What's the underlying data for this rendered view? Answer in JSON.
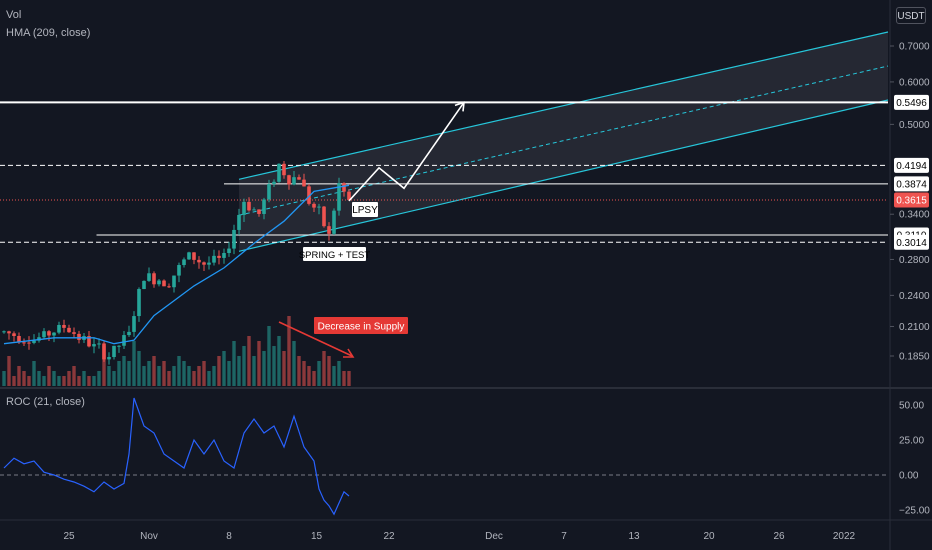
{
  "legend": {
    "volume": "Vol",
    "hma": "HMA (209, close)",
    "roc": "ROC (21, close)"
  },
  "currency": "USDT",
  "colors": {
    "background": "#131722",
    "up": "#26a69a",
    "down": "#ef5350",
    "hma": "#2196f3",
    "roc": "#2962ff",
    "channel": "#26c6da",
    "annotation_red": "#e53935"
  },
  "chart_data": [
    {
      "type": "candlestick",
      "series_name": "price",
      "price_axis_ticks": [
        "0.7000",
        "0.6000",
        "0.5000",
        "0.3400",
        "0.2800",
        "0.2400",
        "0.2100",
        "0.1850"
      ],
      "price_axis_labels": [
        {
          "value": 0.5496,
          "text": "0.5496",
          "style": "white"
        },
        {
          "value": 0.4194,
          "text": "0.4194",
          "style": "white"
        },
        {
          "value": 0.3874,
          "text": "0.3874",
          "style": "white"
        },
        {
          "value": 0.3615,
          "text": "0.3615",
          "style": "last"
        },
        {
          "value": 0.311,
          "text": "0.3110",
          "style": "white"
        },
        {
          "value": 0.3014,
          "text": "0.3014",
          "style": "white"
        }
      ],
      "last_price": 0.3615,
      "date_axis_ticks": [
        "25",
        "Nov",
        "8",
        "15",
        "22",
        "Dec",
        "7",
        "13",
        "20",
        "26",
        "2022"
      ],
      "horizontal_levels": [
        0.5496,
        0.4194,
        0.3874,
        0.311,
        0.3014
      ],
      "annotations": [
        "LPSY",
        "SPRING + TEST",
        "Decrease in Supply"
      ],
      "keypoints": [
        {
          "t": 0,
          "close": 0.205
        },
        {
          "t": 6,
          "close": 0.198
        },
        {
          "t": 12,
          "close": 0.21
        },
        {
          "t": 17,
          "close": 0.195
        },
        {
          "t": 21,
          "close": 0.185
        },
        {
          "t": 25,
          "close": 0.203
        },
        {
          "t": 28,
          "close": 0.26
        },
        {
          "t": 33,
          "close": 0.255
        },
        {
          "t": 37,
          "close": 0.285
        },
        {
          "t": 40,
          "close": 0.275
        },
        {
          "t": 44,
          "close": 0.28
        },
        {
          "t": 48,
          "close": 0.36
        },
        {
          "t": 51,
          "close": 0.34
        },
        {
          "t": 55,
          "close": 0.42
        },
        {
          "t": 57,
          "close": 0.395
        },
        {
          "t": 59,
          "close": 0.4
        },
        {
          "t": 61,
          "close": 0.36
        },
        {
          "t": 63,
          "close": 0.34
        },
        {
          "t": 65,
          "close": 0.31
        },
        {
          "t": 67,
          "close": 0.385
        },
        {
          "t": 69,
          "close": 0.3615
        }
      ],
      "projection_path": [
        {
          "t": 69,
          "price": 0.36
        },
        {
          "t": 75,
          "price": 0.415
        },
        {
          "t": 80,
          "price": 0.38
        },
        {
          "t": 92,
          "price": 0.5496
        }
      ]
    },
    {
      "type": "line",
      "series_name": "HMA (209, close)",
      "x": [
        0,
        10,
        18,
        22,
        26,
        30,
        38,
        44,
        50,
        56,
        62,
        69
      ],
      "y": [
        0.195,
        0.2,
        0.2,
        0.195,
        0.198,
        0.22,
        0.25,
        0.27,
        0.3,
        0.33,
        0.375,
        0.385
      ]
    },
    {
      "type": "bar",
      "series_name": "Vol",
      "values": [
        3,
        6,
        2,
        4,
        3,
        2,
        5,
        3,
        2,
        4,
        3,
        2,
        2,
        3,
        4,
        2,
        3,
        2,
        2,
        3,
        8,
        4,
        3,
        5,
        6,
        5,
        9,
        7,
        4,
        5,
        6,
        4,
        5,
        3,
        4,
        6,
        5,
        4,
        3,
        4,
        5,
        3,
        4,
        6,
        7,
        5,
        9,
        6,
        8,
        10,
        6,
        9,
        7,
        12,
        8,
        10,
        7,
        14,
        9,
        6,
        5,
        4,
        3,
        5,
        7,
        6,
        4,
        5,
        3,
        3
      ]
    },
    {
      "type": "line",
      "series_name": "ROC (21, close)",
      "y_ticks": [
        "50.00",
        "25.00",
        "0.00",
        "-25.00"
      ],
      "ylim": [
        -30,
        60
      ],
      "x": [
        0,
        2,
        4,
        6,
        8,
        10,
        12,
        14,
        16,
        18,
        20,
        22,
        24,
        25,
        26,
        27,
        28,
        30,
        32,
        34,
        36,
        38,
        40,
        42,
        44,
        46,
        48,
        50,
        52,
        54,
        56,
        58,
        60,
        62,
        63,
        64,
        65,
        66,
        67,
        68,
        69
      ],
      "y": [
        5,
        12,
        8,
        10,
        2,
        0,
        -3,
        -5,
        -8,
        -12,
        -5,
        -10,
        -6,
        15,
        55,
        45,
        35,
        30,
        15,
        10,
        5,
        25,
        15,
        25,
        10,
        5,
        30,
        40,
        30,
        35,
        20,
        42,
        20,
        10,
        -10,
        -18,
        -22,
        -28,
        -20,
        -12,
        -15
      ]
    }
  ]
}
